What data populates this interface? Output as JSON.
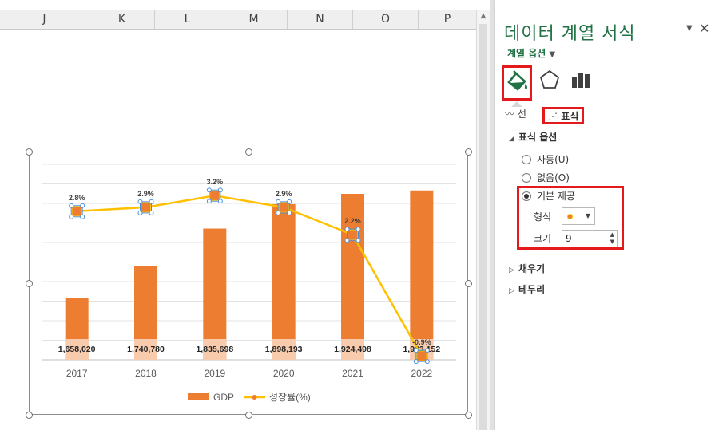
{
  "sheet": {
    "columns": [
      "J",
      "K",
      "L",
      "M",
      "N",
      "O",
      "P"
    ]
  },
  "chart_data": {
    "type": "bar",
    "categories": [
      "2017",
      "2018",
      "2019",
      "2020",
      "2021",
      "2022"
    ],
    "series": [
      {
        "name": "GDP",
        "kind": "bar",
        "color": "#ed7d31",
        "values": [
          1658020,
          1740780,
          1835698,
          1898193,
          1924498,
          1933152
        ],
        "labels": [
          "1,658,020",
          "1,740,780",
          "1,835,698",
          "1,898,193",
          "1,924,498",
          "1,933,152"
        ]
      },
      {
        "name": "성장률(%)",
        "kind": "line",
        "color": "#ffc000",
        "axis": "secondary",
        "values": [
          2.8,
          2.9,
          3.2,
          2.9,
          2.2,
          -0.9
        ],
        "labels": [
          "2.8%",
          "2.9%",
          "3.2%",
          "2.9%",
          "2.2%",
          "-0.9%"
        ]
      }
    ],
    "ylim": [
      1500000,
      2000000
    ],
    "y2lim": [
      -1,
      4
    ],
    "grid": true,
    "legend": "bottom"
  },
  "pane": {
    "title": "데이터 계열 서식",
    "series_options": "계열 옵션",
    "subtab_line": "선",
    "subtab_marker": "표식",
    "section_marker_options": "표식 옵션",
    "radio_auto": "자동(U)",
    "radio_none": "없음(O)",
    "radio_builtin": "기본 제공",
    "label_type": "형식",
    "label_size": "크기",
    "size_value": "9",
    "section_fill": "채우기",
    "section_border": "테두리",
    "marker_color": "#ed7d31"
  }
}
